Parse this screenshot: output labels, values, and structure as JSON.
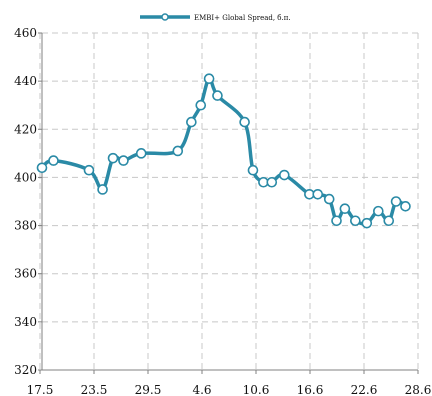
{
  "chart_data": {
    "type": "line",
    "series": [
      {
        "name": "EMBI+ Global Spread, б.п.",
        "x": [
          0,
          1.1,
          4.5,
          5.8,
          6.8,
          7.8,
          9.5,
          13.0,
          14.3,
          15.2,
          16.0,
          16.8,
          19.4,
          20.2,
          21.2,
          22.0,
          23.2,
          25.6,
          26.4,
          27.5,
          28.2,
          29.0,
          30.0,
          31.1,
          32.2,
          33.2,
          33.9,
          34.8
        ],
        "values": [
          404,
          407,
          403,
          395,
          408,
          407,
          410,
          411,
          423,
          430,
          441,
          434,
          423,
          403,
          398,
          398,
          401,
          393,
          393,
          391,
          382,
          387,
          382,
          381,
          386,
          382,
          390,
          388
        ]
      }
    ],
    "x_tick_labels": [
      "17.5",
      "23.5",
      "29.5",
      "4.6",
      "10.6",
      "16.6",
      "22.6",
      "28.6"
    ],
    "ylim": [
      320,
      460
    ],
    "y_ticks": [
      320,
      340,
      360,
      380,
      400,
      420,
      440,
      460
    ],
    "grid": true,
    "legend": "top-center",
    "colors": {
      "line": "#2a8aa6",
      "grid": "#c8c8c8",
      "axis": "#808080",
      "marker_fill": "#ffffff"
    }
  }
}
